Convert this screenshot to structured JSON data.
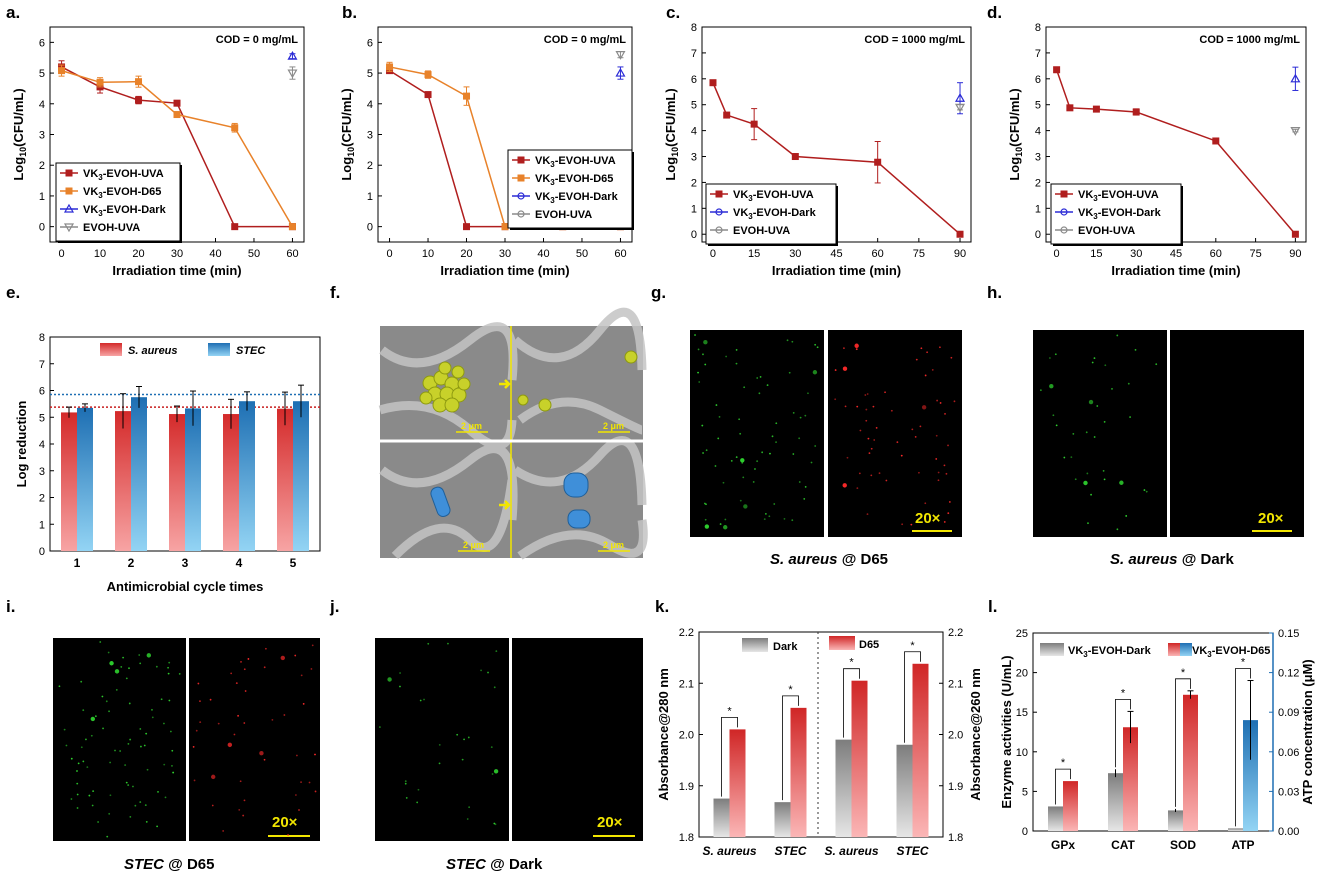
{
  "panel_labels": [
    "a.",
    "b.",
    "c.",
    "d.",
    "e.",
    "f.",
    "g.",
    "h.",
    "i.",
    "j.",
    "k.",
    "l."
  ],
  "colors": {
    "uva": "#b01e1e",
    "d65": "#e8822a",
    "dark": "#2b2bd6",
    "evoh": "#8a8a8a",
    "s_aureus_top": "#d42a2a",
    "s_aureus_bottom": "#f59a9a",
    "stec_top": "#1e6fb3",
    "stec_bottom": "#8ed0f2",
    "gray_top": "#7d7d7d",
    "gray_bottom": "#e4e4e4",
    "atp_axis": "#1f6fb3",
    "scale_text": "#f2e600"
  },
  "chart_data": [
    {
      "id": "a",
      "type": "line",
      "title": "",
      "annotation": "COD = 0 mg/mL",
      "xlabel": "Irradiation time (min)",
      "ylabel_main": "Log",
      "ylabel_sub": "10",
      "ylabel_rest": "(CFU/mL)",
      "xlim": [
        -3,
        63
      ],
      "ylim": [
        -0.5,
        6.5
      ],
      "xticks": [
        0,
        10,
        20,
        30,
        40,
        50,
        60
      ],
      "yticks": [
        0,
        1,
        2,
        3,
        4,
        5,
        6
      ],
      "legend": [
        {
          "label": "VK",
          "sub": "3",
          "rest": "-EVOH-UVA",
          "color": "#b01e1e",
          "marker": "square"
        },
        {
          "label": "VK",
          "sub": "3",
          "rest": "-EVOH-D65",
          "color": "#e8822a",
          "marker": "square"
        },
        {
          "label": "VK",
          "sub": "3",
          "rest": "-EVOH-Dark",
          "color": "#2b2bd6",
          "marker": "triangle-up"
        },
        {
          "label": "EVOH-UVA",
          "sub": "",
          "rest": "",
          "color": "#8a8a8a",
          "marker": "triangle-down"
        }
      ],
      "series": [
        {
          "name": "VK3-EVOH-UVA",
          "color": "#b01e1e",
          "marker": "square",
          "x": [
            0,
            10,
            20,
            30,
            45,
            60
          ],
          "y": [
            5.2,
            4.55,
            4.12,
            4.02,
            0,
            0
          ],
          "err": [
            0.2,
            0.2,
            0.12,
            0.08,
            0,
            0
          ]
        },
        {
          "name": "VK3-EVOH-D65",
          "color": "#e8822a",
          "marker": "square",
          "x": [
            0,
            10,
            20,
            30,
            45,
            60
          ],
          "y": [
            5.08,
            4.7,
            4.72,
            3.65,
            3.22,
            0
          ],
          "err": [
            0.18,
            0.15,
            0.18,
            0.06,
            0.14,
            0
          ]
        },
        {
          "name": "VK3-EVOH-Dark",
          "color": "#2b2bd6",
          "marker": "triangle-up",
          "x": [
            60
          ],
          "y": [
            5.55
          ],
          "err": [
            0.08
          ]
        },
        {
          "name": "EVOH-UVA",
          "color": "#8a8a8a",
          "marker": "triangle-down",
          "x": [
            60
          ],
          "y": [
            5.0
          ],
          "err": [
            0.2
          ]
        }
      ]
    },
    {
      "id": "b",
      "type": "line",
      "annotation": "COD = 0 mg/mL",
      "xlabel": "Irradiation time (min)",
      "ylabel_main": "Log",
      "ylabel_sub": "10",
      "ylabel_rest": "(CFU/mL)",
      "xlim": [
        -3,
        63
      ],
      "ylim": [
        -0.5,
        6.5
      ],
      "xticks": [
        0,
        10,
        20,
        30,
        40,
        50,
        60
      ],
      "yticks": [
        0,
        1,
        2,
        3,
        4,
        5,
        6
      ],
      "legend": [
        {
          "label": "VK",
          "sub": "3",
          "rest": "-EVOH-UVA",
          "color": "#b01e1e",
          "marker": "square"
        },
        {
          "label": "VK",
          "sub": "3",
          "rest": "-EVOH-D65",
          "color": "#e8822a",
          "marker": "square"
        },
        {
          "label": "VK",
          "sub": "3",
          "rest": "-EVOH-Dark",
          "color": "#2b2bd6",
          "marker": "circle"
        },
        {
          "label": "EVOH-UVA",
          "sub": "",
          "rest": "",
          "color": "#8a8a8a",
          "marker": "circle"
        }
      ],
      "series": [
        {
          "name": "VK3-EVOH-UVA",
          "color": "#b01e1e",
          "marker": "square",
          "x": [
            0,
            10,
            20,
            30,
            45,
            60
          ],
          "y": [
            5.08,
            4.3,
            0,
            0,
            0,
            0
          ],
          "err": [
            0.08,
            0,
            0,
            0,
            0,
            0
          ]
        },
        {
          "name": "VK3-EVOH-D65",
          "color": "#e8822a",
          "marker": "square",
          "x": [
            0,
            10,
            20,
            30,
            45,
            60
          ],
          "y": [
            5.2,
            4.95,
            4.25,
            0,
            0,
            0
          ],
          "err": [
            0.15,
            0.12,
            0.3,
            0,
            0,
            0
          ]
        },
        {
          "name": "VK3-EVOH-Dark",
          "color": "#2b2bd6",
          "marker": "triangle-up",
          "x": [
            60
          ],
          "y": [
            5.0
          ],
          "err": [
            0.2
          ]
        },
        {
          "name": "EVOH-UVA",
          "color": "#8a8a8a",
          "marker": "triangle-down",
          "x": [
            60
          ],
          "y": [
            5.6
          ],
          "err": [
            0.1
          ]
        }
      ]
    },
    {
      "id": "c",
      "type": "line",
      "annotation": "COD = 1000 mg/mL",
      "xlabel": "Irradiation time (min)",
      "ylabel_main": "Log",
      "ylabel_sub": "10",
      "ylabel_rest": "(CFU/mL)",
      "xlim": [
        -4,
        94
      ],
      "ylim": [
        -0.3,
        8
      ],
      "xticks": [
        0,
        15,
        30,
        45,
        60,
        75,
        90
      ],
      "yticks": [
        0,
        1,
        2,
        3,
        4,
        5,
        6,
        7,
        8
      ],
      "legend": [
        {
          "label": "VK",
          "sub": "3",
          "rest": "-EVOH-UVA",
          "color": "#b01e1e",
          "marker": "square"
        },
        {
          "label": "VK",
          "sub": "3",
          "rest": "-EVOH-Dark",
          "color": "#2b2bd6",
          "marker": "circle"
        },
        {
          "label": "EVOH-UVA",
          "sub": "",
          "rest": "",
          "color": "#8a8a8a",
          "marker": "circle"
        }
      ],
      "series": [
        {
          "name": "VK3-EVOH-UVA",
          "color": "#b01e1e",
          "marker": "square",
          "x": [
            0,
            5,
            15,
            30,
            60,
            90
          ],
          "y": [
            5.85,
            4.6,
            4.25,
            3.0,
            2.78,
            0
          ],
          "err": [
            0.1,
            0,
            0.6,
            0,
            0.8,
            0
          ]
        },
        {
          "name": "VK3-EVOH-Dark",
          "color": "#2b2bd6",
          "marker": "triangle-up",
          "x": [
            90
          ],
          "y": [
            5.25
          ],
          "err": [
            0.6
          ]
        },
        {
          "name": "EVOH-UVA",
          "color": "#8a8a8a",
          "marker": "triangle-down",
          "x": [
            90
          ],
          "y": [
            4.9
          ],
          "err": [
            0.1
          ]
        }
      ]
    },
    {
      "id": "d",
      "type": "line",
      "annotation": "COD = 1000 mg/mL",
      "xlabel": "Irradiation time (min)",
      "ylabel_main": "Log",
      "ylabel_sub": "10",
      "ylabel_rest": "(CFU/mL)",
      "xlim": [
        -4,
        94
      ],
      "ylim": [
        -0.3,
        8
      ],
      "xticks": [
        0,
        15,
        30,
        45,
        60,
        75,
        90
      ],
      "yticks": [
        0,
        1,
        2,
        3,
        4,
        5,
        6,
        7,
        8
      ],
      "legend": [
        {
          "label": "VK",
          "sub": "3",
          "rest": "-EVOH-UVA",
          "color": "#b01e1e",
          "marker": "square"
        },
        {
          "label": "VK",
          "sub": "3",
          "rest": "-EVOH-Dark",
          "color": "#2b2bd6",
          "marker": "circle"
        },
        {
          "label": "EVOH-UVA",
          "sub": "",
          "rest": "",
          "color": "#8a8a8a",
          "marker": "circle"
        }
      ],
      "series": [
        {
          "name": "VK3-EVOH-UVA",
          "color": "#b01e1e",
          "marker": "square",
          "x": [
            0,
            5,
            15,
            30,
            60,
            90
          ],
          "y": [
            6.35,
            4.88,
            4.83,
            4.72,
            3.6,
            0
          ],
          "err": [
            0.1,
            0,
            0,
            0.12,
            0.08,
            0
          ]
        },
        {
          "name": "VK3-EVOH-Dark",
          "color": "#2b2bd6",
          "marker": "triangle-up",
          "x": [
            90
          ],
          "y": [
            6.0
          ],
          "err": [
            0.45
          ]
        },
        {
          "name": "EVOH-UVA",
          "color": "#8a8a8a",
          "marker": "triangle-down",
          "x": [
            90
          ],
          "y": [
            4.0
          ],
          "err": [
            0.05
          ]
        }
      ]
    },
    {
      "id": "e",
      "type": "bar",
      "xlabel": "Antimicrobial cycle times",
      "ylabel": "Log reduction",
      "ylim": [
        0,
        8
      ],
      "yticks": [
        0,
        1,
        2,
        3,
        4,
        5,
        6,
        7,
        8
      ],
      "categories": [
        "1",
        "2",
        "3",
        "4",
        "5"
      ],
      "legend": [
        "S. aureus",
        "STEC"
      ],
      "reference_lines": [
        5.38,
        5.85
      ],
      "series": [
        {
          "name": "S. aureus",
          "values": [
            5.18,
            5.23,
            5.12,
            5.12,
            5.32
          ],
          "err": [
            0.2,
            0.65,
            0.3,
            0.55,
            0.62
          ]
        },
        {
          "name": "STEC",
          "values": [
            5.35,
            5.75,
            5.33,
            5.6,
            5.6
          ],
          "err": [
            0.15,
            0.4,
            0.65,
            0.35,
            0.6
          ]
        }
      ]
    },
    {
      "id": "k",
      "type": "bar",
      "ylabel_left": "Absorbance@280 nm",
      "ylabel_right": "Absorbance@260 nm",
      "ylim": [
        1.8,
        2.2
      ],
      "yticks": [
        "1.8",
        "1.9",
        "2.0",
        "2.1",
        "2.2"
      ],
      "categories": [
        "S. aureus",
        "STEC",
        "S. aureus",
        "STEC"
      ],
      "legend": [
        "Dark",
        "D65"
      ],
      "significance": [
        "*",
        "*",
        "*",
        "*"
      ],
      "series": [
        {
          "name": "Dark",
          "values": [
            1.875,
            1.868,
            1.99,
            1.98
          ]
        },
        {
          "name": "D65",
          "values": [
            2.01,
            2.052,
            2.105,
            2.138
          ]
        }
      ]
    },
    {
      "id": "l",
      "type": "bar",
      "ylabel_left": "Enzyme activities (U/mL)",
      "ylabel_right": "ATP concentration (μM)",
      "ylim_left": [
        0,
        25
      ],
      "yticks_left": [
        "0",
        "5",
        "10",
        "15",
        "20",
        "25"
      ],
      "ylim_right": [
        0,
        0.15
      ],
      "yticks_right": [
        "0.00",
        "0.03",
        "0.06",
        "0.09",
        "0.12",
        "0.15"
      ],
      "categories": [
        "GPx",
        "CAT",
        "SOD",
        "ATP"
      ],
      "legend": [
        {
          "label": "VK",
          "sub": "3",
          "rest": "-EVOH-Dark"
        },
        {
          "label": "VK",
          "sub": "3",
          "rest": "-EVOH-D65"
        }
      ],
      "significance": [
        "*",
        "*",
        "*",
        "*"
      ],
      "series": [
        {
          "name": "VK3-EVOH-Dark",
          "values": [
            3.1,
            7.3,
            2.6,
            0.002
          ],
          "err": [
            0,
            0.5,
            0.2,
            0.0
          ]
        },
        {
          "name": "VK3-EVOH-D65",
          "values": [
            6.3,
            13.1,
            17.2,
            0.084
          ],
          "err": [
            0,
            2.0,
            0.5,
            0.03
          ]
        }
      ]
    }
  ],
  "sem": {
    "scale_bars": [
      "2 μm",
      "2 μm",
      "2 μm",
      "2 μm"
    ]
  },
  "fluorescence": {
    "magnification": "20×",
    "captions": [
      {
        "italic": "S. aureus",
        "rest": " @ D65"
      },
      {
        "italic": "S. aureus",
        "rest": " @ Dark"
      },
      {
        "italic": "STEC",
        "rest": " @ D65"
      },
      {
        "italic": "STEC",
        "rest": " @ Dark"
      }
    ]
  }
}
